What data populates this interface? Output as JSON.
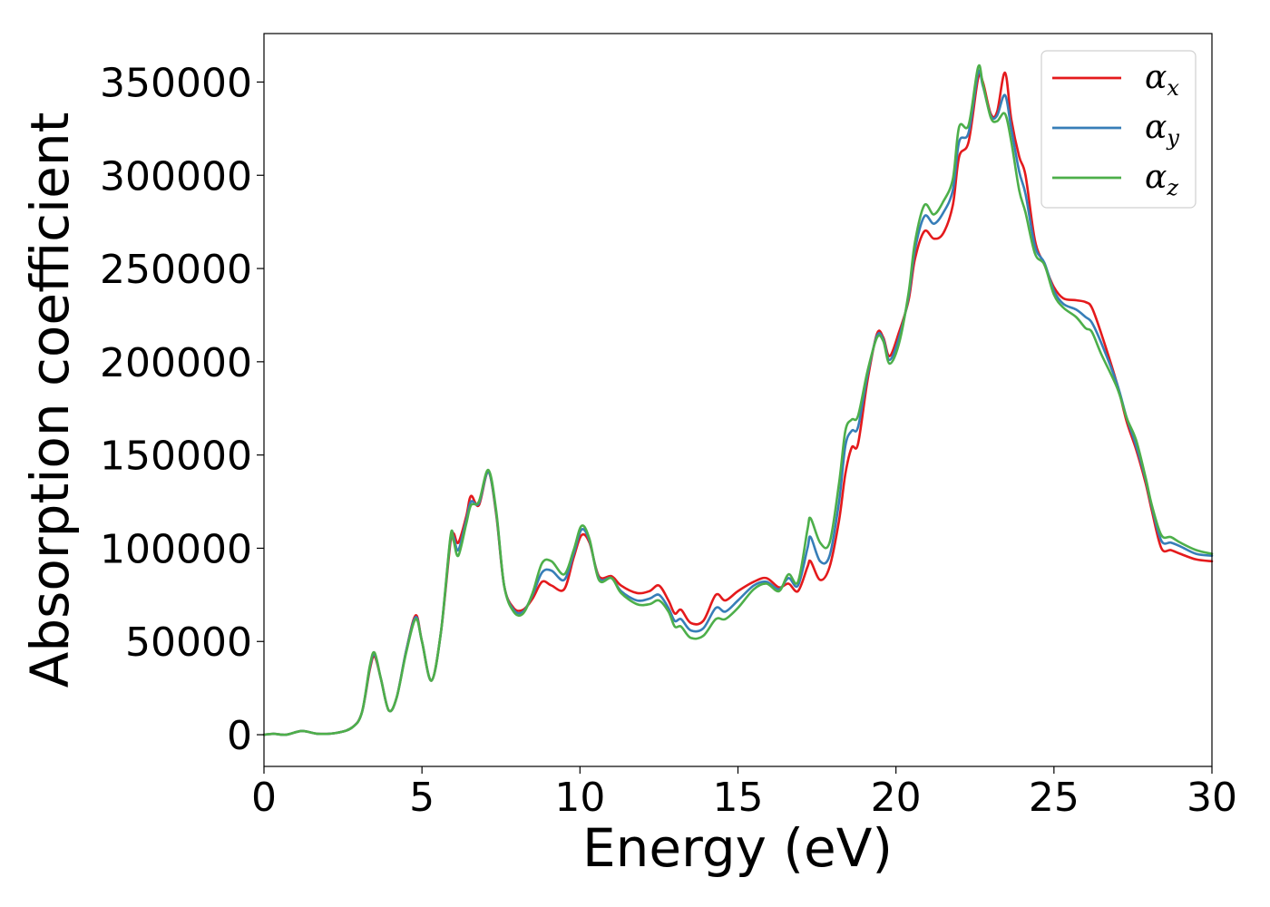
{
  "chart_data": {
    "type": "line",
    "title": "",
    "xlabel": "Energy (eV)",
    "ylabel": "Absorption coefficient",
    "xlim": [
      0,
      30
    ],
    "ylim": [
      -17000,
      376000
    ],
    "x_ticks": [
      0,
      5,
      10,
      15,
      20,
      25,
      30
    ],
    "x_tick_labels": [
      "0",
      "5",
      "10",
      "15",
      "20",
      "25",
      "30"
    ],
    "y_ticks": [
      0,
      50000,
      100000,
      150000,
      200000,
      250000,
      300000,
      350000
    ],
    "y_tick_labels": [
      "0",
      "50000",
      "100000",
      "150000",
      "200000",
      "250000",
      "300000",
      "350000"
    ],
    "grid": false,
    "legend_position": "top-right",
    "series": [
      {
        "name": "α",
        "subscript": "x",
        "color": "#e41a1c",
        "points": [
          [
            0,
            0
          ],
          [
            0.3,
            500
          ],
          [
            0.7,
            0
          ],
          [
            1.2,
            2000
          ],
          [
            1.7,
            500
          ],
          [
            2.3,
            1000
          ],
          [
            2.8,
            4000
          ],
          [
            3.1,
            12000
          ],
          [
            3.35,
            35000
          ],
          [
            3.5,
            42000
          ],
          [
            3.7,
            30000
          ],
          [
            3.95,
            13000
          ],
          [
            4.2,
            20000
          ],
          [
            4.5,
            45000
          ],
          [
            4.8,
            64000
          ],
          [
            5.0,
            50000
          ],
          [
            5.3,
            29000
          ],
          [
            5.6,
            55000
          ],
          [
            5.9,
            103000
          ],
          [
            6.0,
            108000
          ],
          [
            6.15,
            103000
          ],
          [
            6.4,
            117000
          ],
          [
            6.55,
            128000
          ],
          [
            6.8,
            123000
          ],
          [
            7.1,
            141000
          ],
          [
            7.35,
            118000
          ],
          [
            7.6,
            80000
          ],
          [
            7.9,
            68000
          ],
          [
            8.2,
            67000
          ],
          [
            8.5,
            73000
          ],
          [
            8.8,
            82000
          ],
          [
            9.1,
            80000
          ],
          [
            9.5,
            78000
          ],
          [
            9.8,
            95000
          ],
          [
            10.05,
            107000
          ],
          [
            10.3,
            103000
          ],
          [
            10.6,
            85000
          ],
          [
            11.0,
            85000
          ],
          [
            11.3,
            80000
          ],
          [
            11.8,
            76000
          ],
          [
            12.2,
            77000
          ],
          [
            12.5,
            80000
          ],
          [
            12.8,
            72000
          ],
          [
            13.0,
            65000
          ],
          [
            13.2,
            67000
          ],
          [
            13.5,
            60000
          ],
          [
            13.9,
            61000
          ],
          [
            14.3,
            75000
          ],
          [
            14.6,
            72000
          ],
          [
            15.0,
            77000
          ],
          [
            15.5,
            82000
          ],
          [
            15.9,
            84000
          ],
          [
            16.3,
            79000
          ],
          [
            16.6,
            81000
          ],
          [
            16.9,
            77000
          ],
          [
            17.2,
            90000
          ],
          [
            17.3,
            93000
          ],
          [
            17.6,
            83000
          ],
          [
            17.9,
            90000
          ],
          [
            18.2,
            115000
          ],
          [
            18.4,
            140000
          ],
          [
            18.6,
            154000
          ],
          [
            18.8,
            156000
          ],
          [
            19.1,
            190000
          ],
          [
            19.4,
            215000
          ],
          [
            19.6,
            213000
          ],
          [
            19.8,
            203000
          ],
          [
            20.1,
            216000
          ],
          [
            20.4,
            233000
          ],
          [
            20.6,
            255000
          ],
          [
            20.9,
            270000
          ],
          [
            21.2,
            266000
          ],
          [
            21.5,
            269000
          ],
          [
            21.8,
            284000
          ],
          [
            22.0,
            310000
          ],
          [
            22.3,
            318000
          ],
          [
            22.6,
            352000
          ],
          [
            22.75,
            350000
          ],
          [
            23.0,
            333000
          ],
          [
            23.2,
            334000
          ],
          [
            23.45,
            355000
          ],
          [
            23.65,
            330000
          ],
          [
            23.9,
            310000
          ],
          [
            24.1,
            300000
          ],
          [
            24.4,
            265000
          ],
          [
            24.7,
            252000
          ],
          [
            25.0,
            240000
          ],
          [
            25.3,
            234000
          ],
          [
            25.7,
            233000
          ],
          [
            26.0,
            232000
          ],
          [
            26.2,
            229000
          ],
          [
            26.5,
            215000
          ],
          [
            27.0,
            188000
          ],
          [
            27.3,
            168000
          ],
          [
            27.6,
            153000
          ],
          [
            27.9,
            135000
          ],
          [
            28.1,
            120000
          ],
          [
            28.4,
            100000
          ],
          [
            28.7,
            99000
          ],
          [
            29.0,
            97000
          ],
          [
            29.5,
            94000
          ],
          [
            30.0,
            93000
          ]
        ]
      },
      {
        "name": "α",
        "subscript": "y",
        "color": "#377eb8",
        "points": [
          [
            0,
            0
          ],
          [
            0.3,
            500
          ],
          [
            0.7,
            0
          ],
          [
            1.2,
            2000
          ],
          [
            1.7,
            500
          ],
          [
            2.3,
            1000
          ],
          [
            2.8,
            4000
          ],
          [
            3.1,
            12000
          ],
          [
            3.35,
            36000
          ],
          [
            3.5,
            43000
          ],
          [
            3.7,
            30000
          ],
          [
            3.95,
            13000
          ],
          [
            4.2,
            20000
          ],
          [
            4.5,
            45000
          ],
          [
            4.8,
            63000
          ],
          [
            5.0,
            50000
          ],
          [
            5.3,
            29000
          ],
          [
            5.6,
            55000
          ],
          [
            5.9,
            105000
          ],
          [
            6.0,
            106000
          ],
          [
            6.15,
            99000
          ],
          [
            6.4,
            115000
          ],
          [
            6.55,
            125000
          ],
          [
            6.8,
            124000
          ],
          [
            7.1,
            141000
          ],
          [
            7.35,
            119000
          ],
          [
            7.6,
            80000
          ],
          [
            7.9,
            67000
          ],
          [
            8.2,
            66000
          ],
          [
            8.5,
            75000
          ],
          [
            8.8,
            87000
          ],
          [
            9.1,
            88000
          ],
          [
            9.5,
            83000
          ],
          [
            9.8,
            97000
          ],
          [
            10.05,
            110000
          ],
          [
            10.3,
            104000
          ],
          [
            10.6,
            84000
          ],
          [
            11.0,
            84000
          ],
          [
            11.3,
            77000
          ],
          [
            11.8,
            72000
          ],
          [
            12.2,
            73000
          ],
          [
            12.5,
            75000
          ],
          [
            12.8,
            68000
          ],
          [
            13.0,
            61000
          ],
          [
            13.2,
            62000
          ],
          [
            13.5,
            56000
          ],
          [
            13.9,
            57000
          ],
          [
            14.3,
            68000
          ],
          [
            14.6,
            66000
          ],
          [
            15.0,
            72000
          ],
          [
            15.5,
            80000
          ],
          [
            15.9,
            82000
          ],
          [
            16.3,
            78000
          ],
          [
            16.6,
            84000
          ],
          [
            16.9,
            80000
          ],
          [
            17.2,
            100000
          ],
          [
            17.3,
            106000
          ],
          [
            17.6,
            93000
          ],
          [
            17.9,
            96000
          ],
          [
            18.2,
            125000
          ],
          [
            18.4,
            155000
          ],
          [
            18.6,
            163000
          ],
          [
            18.8,
            165000
          ],
          [
            19.1,
            193000
          ],
          [
            19.4,
            214000
          ],
          [
            19.6,
            212000
          ],
          [
            19.8,
            201000
          ],
          [
            20.1,
            213000
          ],
          [
            20.4,
            235000
          ],
          [
            20.6,
            260000
          ],
          [
            20.9,
            278000
          ],
          [
            21.2,
            274000
          ],
          [
            21.5,
            280000
          ],
          [
            21.8,
            292000
          ],
          [
            22.0,
            318000
          ],
          [
            22.3,
            323000
          ],
          [
            22.6,
            355000
          ],
          [
            22.75,
            348000
          ],
          [
            23.0,
            332000
          ],
          [
            23.2,
            332000
          ],
          [
            23.45,
            343000
          ],
          [
            23.65,
            325000
          ],
          [
            23.9,
            302000
          ],
          [
            24.1,
            290000
          ],
          [
            24.4,
            262000
          ],
          [
            24.7,
            253000
          ],
          [
            25.0,
            238000
          ],
          [
            25.3,
            231000
          ],
          [
            25.7,
            228000
          ],
          [
            26.0,
            224000
          ],
          [
            26.2,
            221000
          ],
          [
            26.5,
            210000
          ],
          [
            27.0,
            188000
          ],
          [
            27.3,
            170000
          ],
          [
            27.6,
            155000
          ],
          [
            27.9,
            137000
          ],
          [
            28.1,
            122000
          ],
          [
            28.4,
            104000
          ],
          [
            28.7,
            103000
          ],
          [
            29.0,
            101000
          ],
          [
            29.5,
            97000
          ],
          [
            30.0,
            96000
          ]
        ]
      },
      {
        "name": "α",
        "subscript": "z",
        "color": "#4daf4a",
        "points": [
          [
            0,
            0
          ],
          [
            0.3,
            500
          ],
          [
            0.7,
            0
          ],
          [
            1.2,
            2000
          ],
          [
            1.7,
            500
          ],
          [
            2.3,
            1000
          ],
          [
            2.8,
            4000
          ],
          [
            3.1,
            12000
          ],
          [
            3.35,
            37000
          ],
          [
            3.5,
            44000
          ],
          [
            3.7,
            30000
          ],
          [
            3.95,
            13000
          ],
          [
            4.2,
            20000
          ],
          [
            4.5,
            44000
          ],
          [
            4.8,
            62000
          ],
          [
            5.0,
            50000
          ],
          [
            5.3,
            29000
          ],
          [
            5.6,
            55000
          ],
          [
            5.9,
            106000
          ],
          [
            6.0,
            104000
          ],
          [
            6.15,
            96000
          ],
          [
            6.4,
            113000
          ],
          [
            6.55,
            123000
          ],
          [
            6.8,
            125000
          ],
          [
            7.1,
            142000
          ],
          [
            7.35,
            120000
          ],
          [
            7.6,
            80000
          ],
          [
            7.9,
            66000
          ],
          [
            8.2,
            65000
          ],
          [
            8.5,
            76000
          ],
          [
            8.8,
            92000
          ],
          [
            9.1,
            93000
          ],
          [
            9.5,
            86000
          ],
          [
            9.8,
            99000
          ],
          [
            10.05,
            112000
          ],
          [
            10.3,
            105000
          ],
          [
            10.6,
            83000
          ],
          [
            11.0,
            84000
          ],
          [
            11.3,
            76000
          ],
          [
            11.8,
            70000
          ],
          [
            12.2,
            70000
          ],
          [
            12.5,
            72000
          ],
          [
            12.8,
            66000
          ],
          [
            13.0,
            58000
          ],
          [
            13.2,
            58000
          ],
          [
            13.5,
            52000
          ],
          [
            13.9,
            53000
          ],
          [
            14.3,
            62000
          ],
          [
            14.6,
            62000
          ],
          [
            15.0,
            68000
          ],
          [
            15.5,
            78000
          ],
          [
            15.9,
            81000
          ],
          [
            16.3,
            77000
          ],
          [
            16.6,
            86000
          ],
          [
            16.9,
            82000
          ],
          [
            17.2,
            110000
          ],
          [
            17.3,
            116000
          ],
          [
            17.6,
            103000
          ],
          [
            17.9,
            103000
          ],
          [
            18.2,
            135000
          ],
          [
            18.4,
            163000
          ],
          [
            18.6,
            169000
          ],
          [
            18.8,
            171000
          ],
          [
            19.1,
            195000
          ],
          [
            19.4,
            213000
          ],
          [
            19.6,
            211000
          ],
          [
            19.8,
            199000
          ],
          [
            20.1,
            210000
          ],
          [
            20.4,
            237000
          ],
          [
            20.6,
            264000
          ],
          [
            20.9,
            284000
          ],
          [
            21.2,
            279000
          ],
          [
            21.5,
            286000
          ],
          [
            21.8,
            298000
          ],
          [
            22.0,
            326000
          ],
          [
            22.3,
            327000
          ],
          [
            22.6,
            358000
          ],
          [
            22.75,
            349000
          ],
          [
            23.0,
            331000
          ],
          [
            23.2,
            329000
          ],
          [
            23.45,
            333000
          ],
          [
            23.65,
            318000
          ],
          [
            23.9,
            292000
          ],
          [
            24.1,
            280000
          ],
          [
            24.4,
            258000
          ],
          [
            24.7,
            252000
          ],
          [
            25.0,
            236000
          ],
          [
            25.3,
            229000
          ],
          [
            25.7,
            224000
          ],
          [
            26.0,
            218000
          ],
          [
            26.2,
            216000
          ],
          [
            26.5,
            204000
          ],
          [
            27.0,
            186000
          ],
          [
            27.3,
            170000
          ],
          [
            27.6,
            158000
          ],
          [
            27.9,
            138000
          ],
          [
            28.1,
            123000
          ],
          [
            28.4,
            107000
          ],
          [
            28.7,
            106000
          ],
          [
            29.0,
            103000
          ],
          [
            29.5,
            99000
          ],
          [
            30.0,
            97000
          ]
        ]
      }
    ]
  }
}
